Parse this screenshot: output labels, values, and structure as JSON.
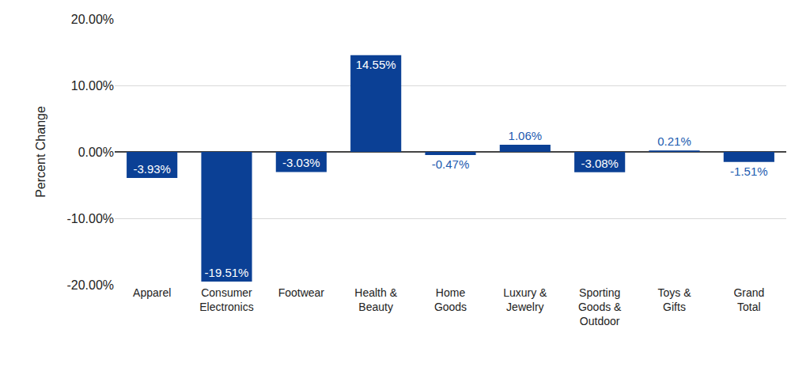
{
  "chart_data": {
    "type": "bar",
    "y_label": "Percent Change",
    "categories": [
      "Apparel",
      "Consumer Electronics",
      "Footwear",
      "Health & Beauty",
      "Home Goods",
      "Luxury & Jewelry",
      "Sporting Goods & Outdoor",
      "Toys & Gifts",
      "Grand Total"
    ],
    "values": [
      -3.93,
      -19.51,
      -3.03,
      14.55,
      -0.47,
      1.06,
      -3.08,
      0.21,
      -1.51
    ],
    "value_labels": [
      "-3.93%",
      "-19.51%",
      "-3.03%",
      "14.55%",
      "-0.47%",
      "1.06%",
      "-3.08%",
      "0.21%",
      "-1.51%"
    ],
    "color": "#0b4095",
    "ylim": [
      -20,
      20
    ],
    "yticks": [
      {
        "value": -20,
        "label": "-20.00%"
      },
      {
        "value": -10,
        "label": "-10.00%"
      },
      {
        "value": 0,
        "label": "0.00%"
      },
      {
        "value": 10,
        "label": "10.00%"
      },
      {
        "value": 20,
        "label": "20.00%"
      }
    ],
    "grid": true,
    "data_labels": true
  }
}
